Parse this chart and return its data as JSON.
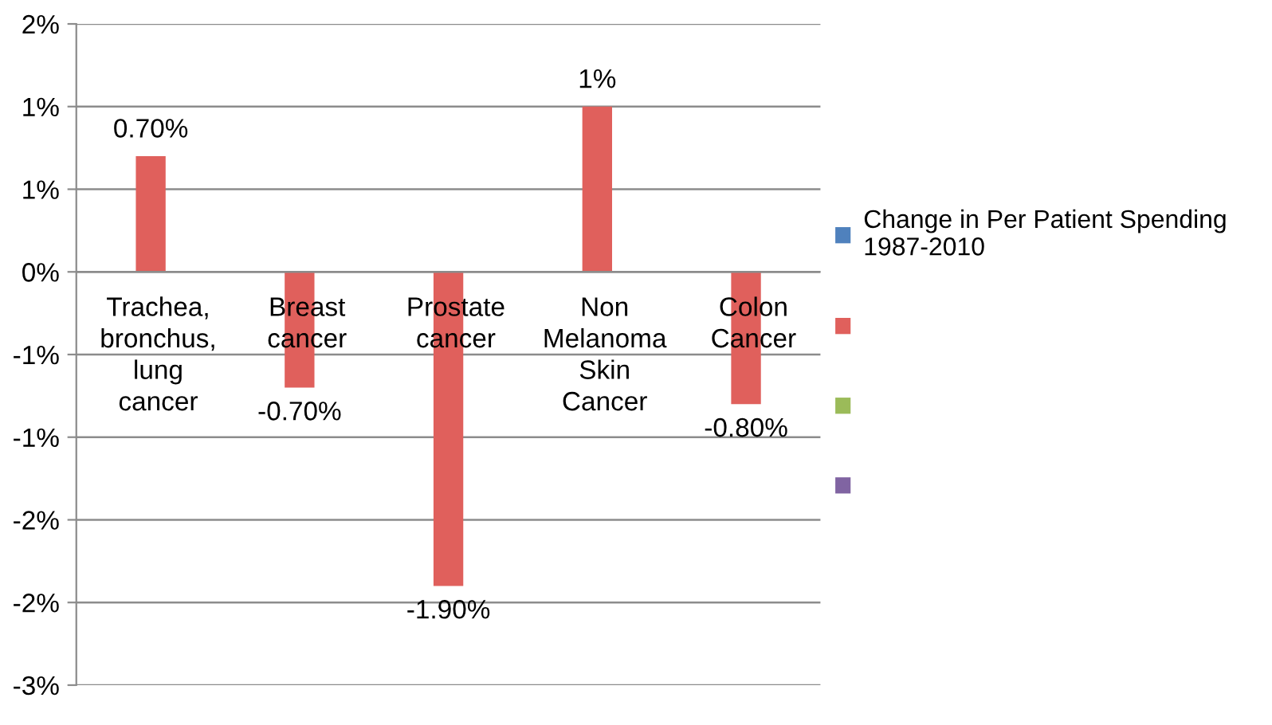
{
  "chart_data": {
    "type": "bar",
    "categories": [
      "Trachea, bronchus, lung cancer",
      "Breast cancer",
      "Prostate cancer",
      "Non Melanoma Skin Cancer",
      "Colon Cancer"
    ],
    "series": [
      {
        "name": "Change in Per Patient Spending 1987-2010",
        "color": "#4f81bd",
        "values": [
          null,
          null,
          null,
          null,
          null
        ]
      },
      {
        "color": "#e0605c",
        "values": [
          0.7,
          -0.7,
          -1.9,
          1.0,
          -0.8
        ],
        "value_labels": [
          "0.70%",
          "-0.70%",
          "-1.90%",
          "1%",
          "-0.80%"
        ]
      },
      {
        "color": "#9bbb59",
        "values": [
          null,
          null,
          null,
          null,
          null
        ]
      },
      {
        "color": "#8064a2",
        "values": [
          null,
          null,
          null,
          null,
          null
        ]
      }
    ],
    "ylim": [
      -2.5,
      1.5
    ],
    "yticks": [
      {
        "value": -2.5,
        "label": "-3%"
      },
      {
        "value": -2.0,
        "label": "-2%"
      },
      {
        "value": -1.5,
        "label": "-2%"
      },
      {
        "value": -1.0,
        "label": "-1%"
      },
      {
        "value": -0.5,
        "label": "-1%"
      },
      {
        "value": 0,
        "label": "0%"
      },
      {
        "value": 0.5,
        "label": "1%"
      },
      {
        "value": 1.0,
        "label": "1%"
      },
      {
        "value": 1.5,
        "label": "2%"
      }
    ],
    "grid": "y",
    "legend": "right"
  }
}
